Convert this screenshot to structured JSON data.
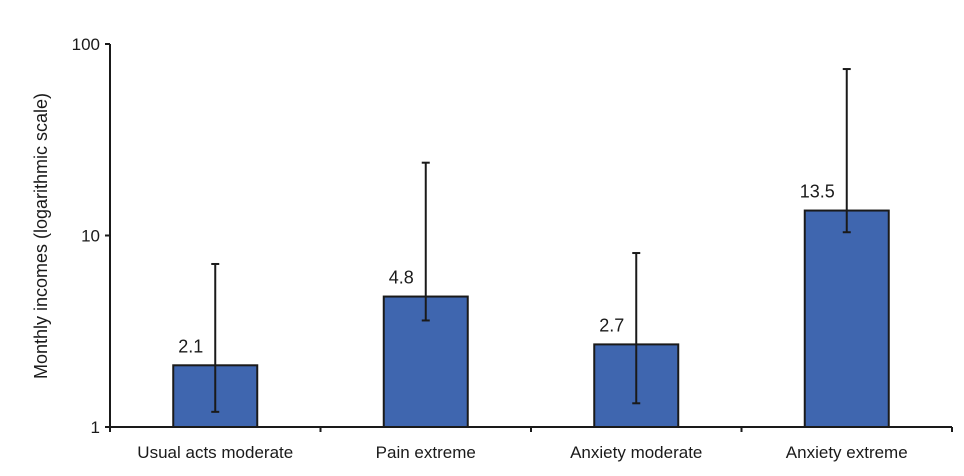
{
  "chart_data": {
    "type": "bar",
    "title": "",
    "xlabel": "",
    "ylabel": "Monthly incomes (logarithmic scale)",
    "yscale": "log",
    "ylim": [
      1,
      100
    ],
    "yticks": [
      1,
      10,
      100
    ],
    "ytick_labels": [
      "1",
      "10",
      "100"
    ],
    "grid": false,
    "legend": null,
    "categories": [
      "Usual acts moderate",
      "Pain extreme",
      "Anxiety moderate",
      "Anxiety extreme"
    ],
    "values": [
      2.1,
      4.8,
      2.7,
      13.5
    ],
    "data_labels": [
      "2.1",
      "4.8",
      "2.7",
      "13.5"
    ],
    "error_bars": [
      {
        "lower": 1.2,
        "upper": 7.1
      },
      {
        "lower": 3.6,
        "upper": 24.0
      },
      {
        "lower": 1.33,
        "upper": 8.1
      },
      {
        "lower": 10.4,
        "upper": 74.0
      }
    ],
    "colors": {
      "bar_fill": "#3F66AF",
      "bar_stroke": "#1a1a1a",
      "axis": "#1a1a1a",
      "error_bar": "#1a1a1a"
    }
  }
}
